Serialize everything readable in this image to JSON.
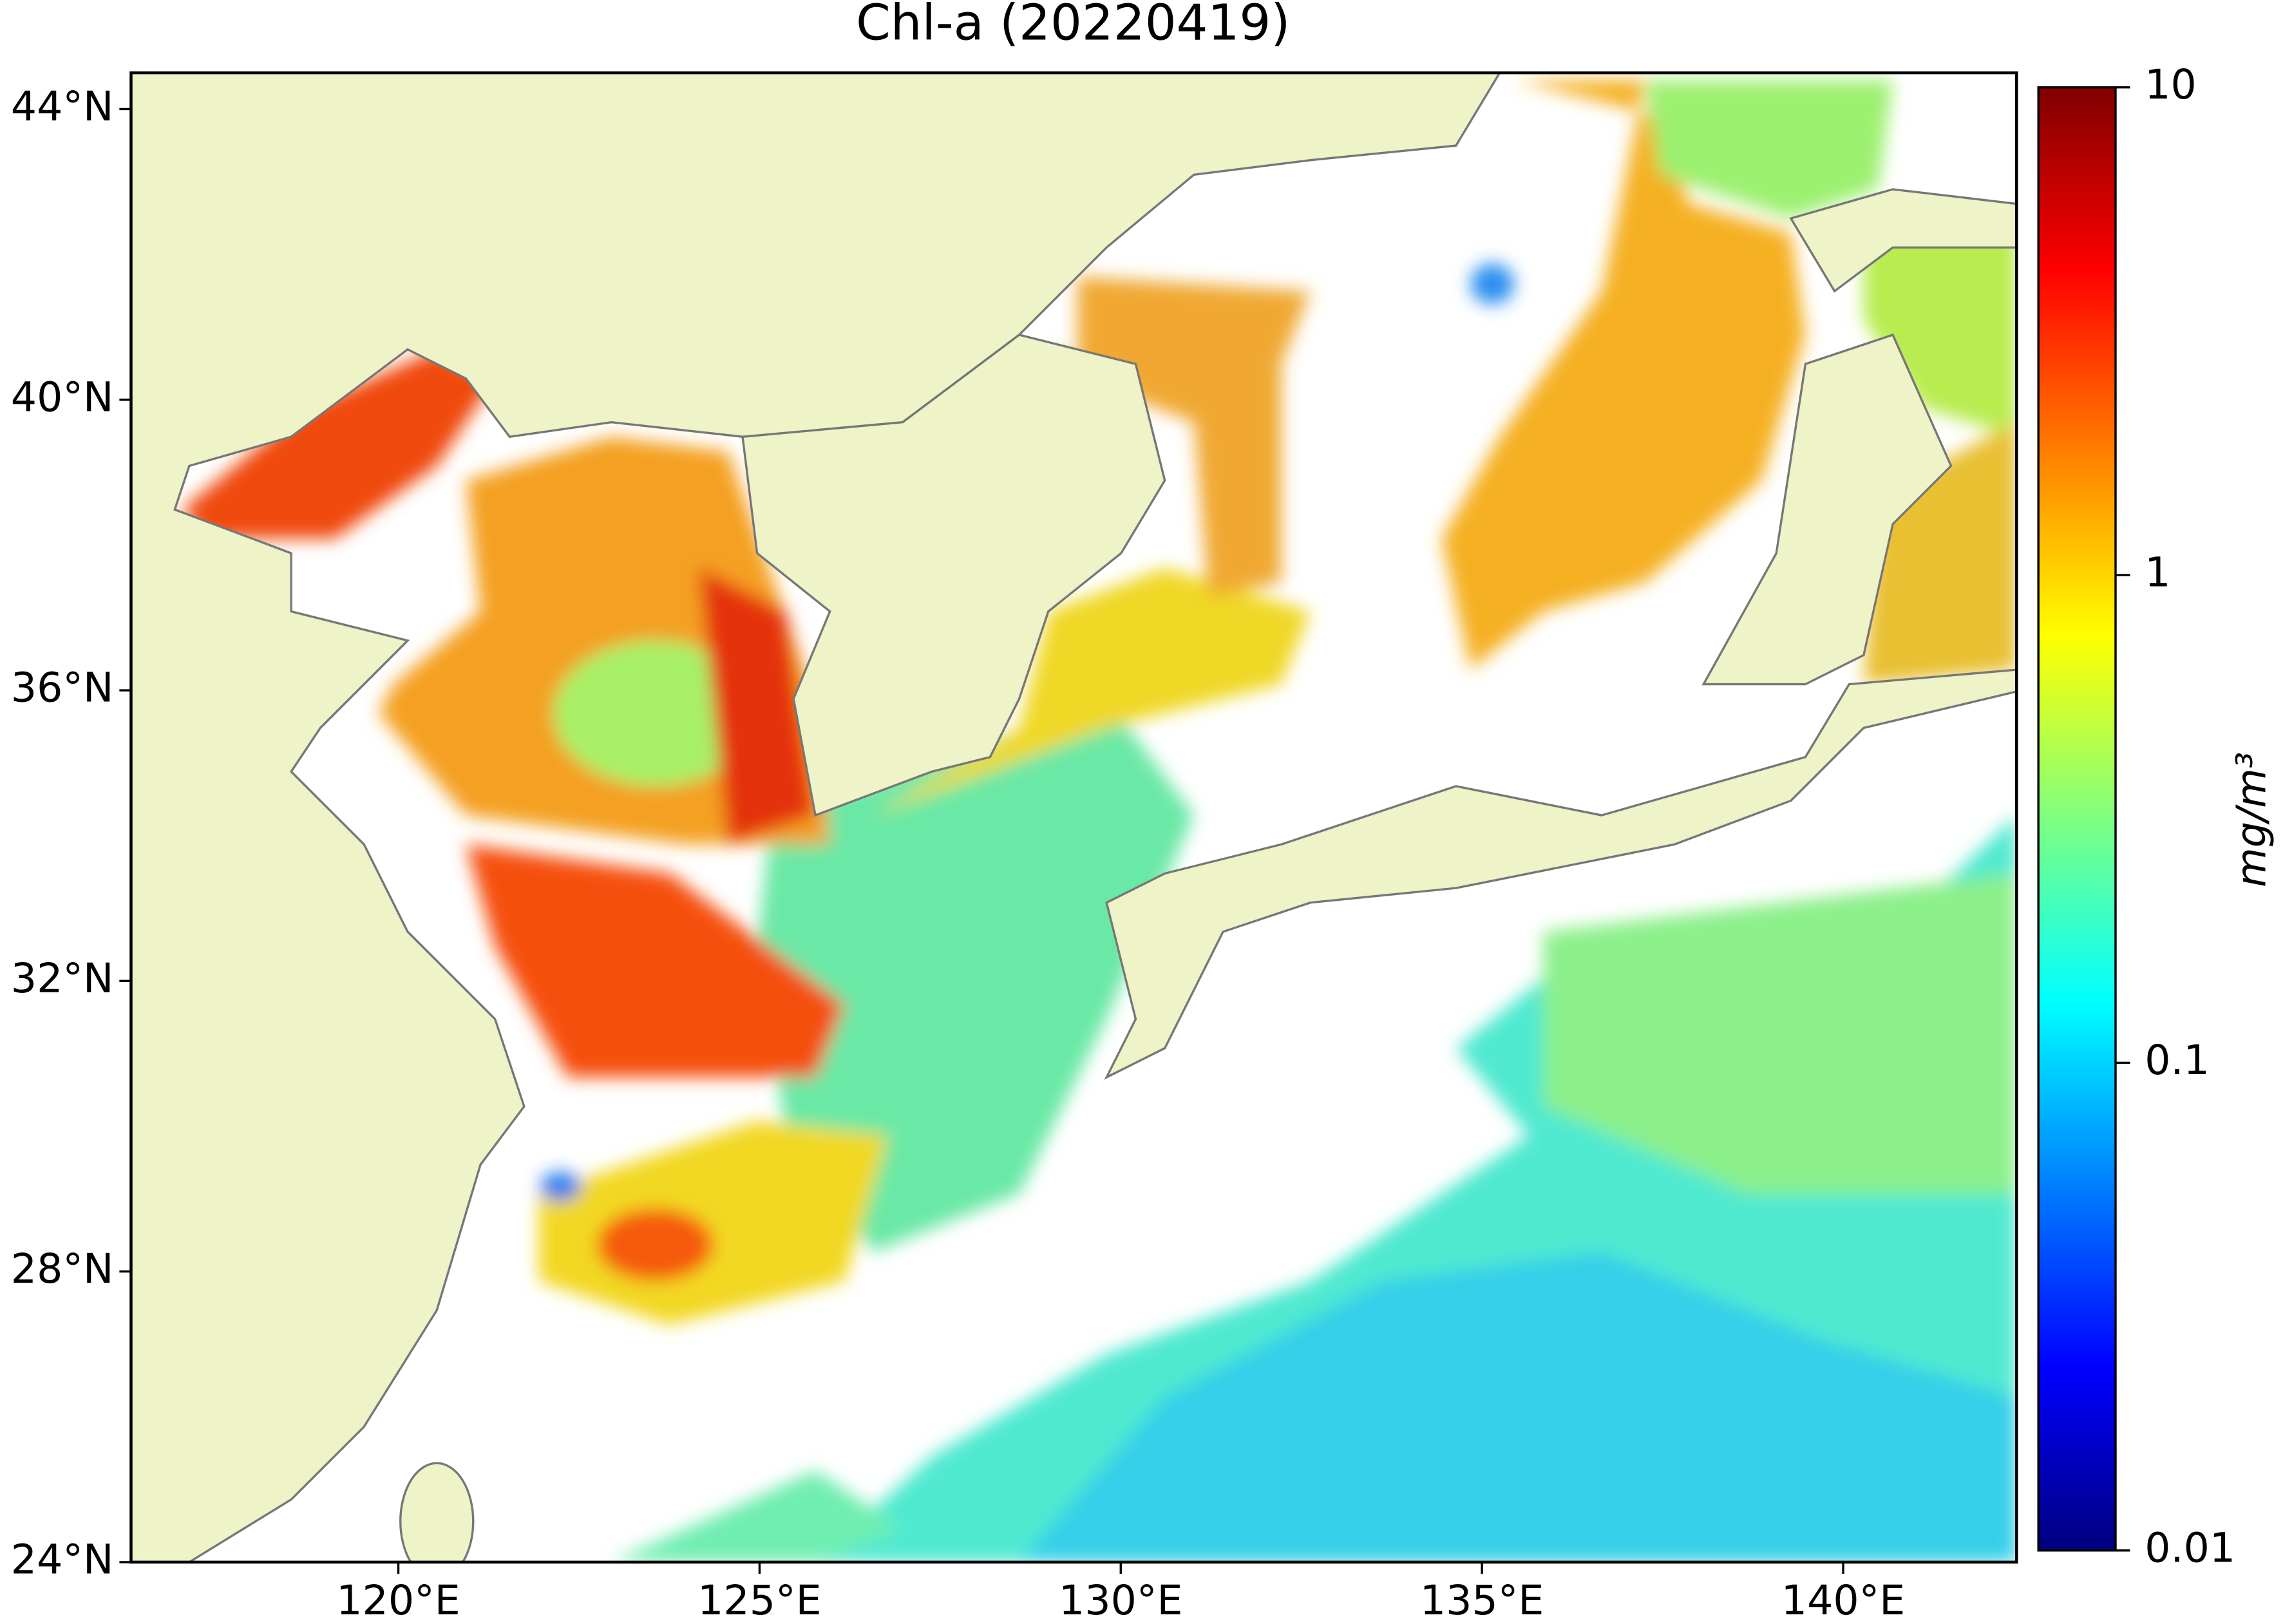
{
  "map": {
    "title": "Chl-a (20220419)",
    "xlim": [
      116.3,
      142.4
    ],
    "ylim": [
      24,
      44.5
    ],
    "xticks": [
      {
        "value": 120,
        "label": "120°E"
      },
      {
        "value": 125,
        "label": "125°E"
      },
      {
        "value": 130,
        "label": "130°E"
      },
      {
        "value": 135,
        "label": "135°E"
      },
      {
        "value": 140,
        "label": "140°E"
      }
    ],
    "yticks": [
      {
        "value": 24,
        "label": "24°N"
      },
      {
        "value": 28,
        "label": "28°N"
      },
      {
        "value": 32,
        "label": "32°N"
      },
      {
        "value": 36,
        "label": "36°N"
      },
      {
        "value": 40,
        "label": "40°N"
      },
      {
        "value": 44,
        "label": "44°N"
      }
    ],
    "colorbar": {
      "label": "mg/m³",
      "scale": "log",
      "lim": [
        0.01,
        10
      ],
      "ticks": [
        0.01,
        0.1,
        1,
        10
      ],
      "colormap": [
        "#00007f",
        "#0000ff",
        "#007fff",
        "#00ffff",
        "#7fff7f",
        "#ffff00",
        "#ff7f00",
        "#ff0000",
        "#7f0000"
      ]
    }
  }
}
